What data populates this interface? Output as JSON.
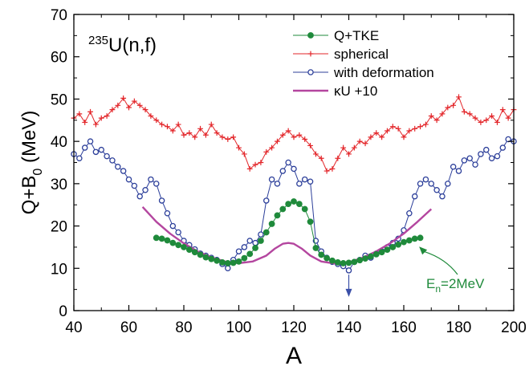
{
  "chart_data": {
    "type": "line",
    "title": "",
    "reaction": {
      "mass": "235",
      "rest": "U(n,f)"
    },
    "xlabel": "A",
    "ylabel": {
      "main": "Q+B",
      "sub": "0",
      "unit": " (MeV)"
    },
    "xlim": [
      40,
      200
    ],
    "ylim": [
      0,
      70
    ],
    "xticks": [
      "40",
      "60",
      "80",
      "100",
      "120",
      "140",
      "160",
      "180",
      "200"
    ],
    "yticks": [
      "0",
      "10",
      "20",
      "30",
      "40",
      "50",
      "60",
      "70"
    ],
    "grid": false,
    "legend_placement": "top-right",
    "annotation": {
      "text_main": "E",
      "text_sub": "n",
      "text_rest": "=2MeV",
      "color": "#1f8a3b",
      "point": [
        165,
        15.5
      ]
    },
    "marker_arrow": {
      "x": 140,
      "y_from": 8.5,
      "y_to": 4.0,
      "color": "#3a4fa8"
    },
    "series": [
      {
        "name": "Q+TKE",
        "color": "#1f8a3b",
        "marker": "filled-circle",
        "x": [
          70,
          72,
          74,
          76,
          78,
          80,
          82,
          84,
          86,
          88,
          90,
          92,
          94,
          96,
          98,
          100,
          102,
          104,
          106,
          108,
          110,
          112,
          114,
          116,
          118,
          120,
          122,
          124,
          126,
          128,
          130,
          132,
          134,
          136,
          138,
          140,
          142,
          144,
          146,
          148,
          150,
          152,
          154,
          156,
          158,
          160,
          162,
          164,
          166
        ],
        "y": [
          17.2,
          17.0,
          16.6,
          16.0,
          15.5,
          15.0,
          14.4,
          13.8,
          13.2,
          12.6,
          12.2,
          11.8,
          11.4,
          11.2,
          11.3,
          11.6,
          12.4,
          13.4,
          14.8,
          16.5,
          18.5,
          20.5,
          22.5,
          24.0,
          25.2,
          25.8,
          25.2,
          24.0,
          21.0,
          14.8,
          13.2,
          12.4,
          11.8,
          11.4,
          11.2,
          11.3,
          11.5,
          11.9,
          12.3,
          12.8,
          13.3,
          13.8,
          14.4,
          15.0,
          15.6,
          16.2,
          16.6,
          17.0,
          17.2
        ]
      },
      {
        "name": "spherical",
        "color": "#e3262a",
        "marker": "plus",
        "x": [
          40,
          42,
          44,
          46,
          48,
          50,
          52,
          54,
          56,
          58,
          60,
          62,
          64,
          66,
          68,
          70,
          72,
          74,
          76,
          78,
          80,
          82,
          84,
          86,
          88,
          90,
          92,
          94,
          96,
          98,
          100,
          102,
          104,
          106,
          108,
          110,
          112,
          114,
          116,
          118,
          120,
          122,
          124,
          126,
          128,
          130,
          132,
          134,
          136,
          138,
          140,
          142,
          144,
          146,
          148,
          150,
          152,
          154,
          156,
          158,
          160,
          162,
          164,
          166,
          168,
          170,
          172,
          174,
          176,
          178,
          180,
          182,
          184,
          186,
          188,
          190,
          192,
          194,
          196,
          198,
          200
        ],
        "y": [
          45.5,
          46.5,
          44.5,
          47.0,
          44.0,
          45.5,
          46.0,
          47.5,
          48.5,
          50.2,
          48.0,
          49.5,
          48.5,
          47.5,
          46.0,
          45.0,
          44.0,
          43.5,
          42.5,
          44.0,
          41.5,
          42.0,
          41.0,
          43.0,
          41.5,
          44.0,
          42.0,
          41.0,
          40.5,
          41.0,
          38.5,
          37.0,
          33.5,
          34.5,
          35.0,
          37.5,
          38.5,
          40.0,
          41.5,
          42.5,
          41.0,
          41.5,
          40.5,
          39.0,
          37.0,
          36.0,
          33.0,
          33.5,
          36.0,
          38.5,
          37.0,
          38.5,
          40.0,
          39.5,
          41.0,
          42.0,
          41.0,
          42.5,
          43.5,
          43.0,
          41.0,
          42.5,
          43.0,
          43.5,
          44.0,
          46.0,
          45.0,
          46.5,
          48.0,
          48.5,
          50.5,
          47.0,
          46.5,
          45.5,
          44.5,
          45.0,
          46.0,
          44.5,
          47.5,
          45.5,
          47.5
        ]
      },
      {
        "name": "with deformation",
        "color": "#2c3f9a",
        "marker": "open-circle",
        "x": [
          40,
          42,
          44,
          46,
          48,
          50,
          52,
          54,
          56,
          58,
          60,
          62,
          64,
          66,
          68,
          70,
          72,
          74,
          76,
          78,
          80,
          82,
          84,
          86,
          88,
          90,
          92,
          94,
          96,
          98,
          100,
          102,
          104,
          106,
          108,
          110,
          112,
          114,
          116,
          118,
          120,
          122,
          124,
          126,
          128,
          130,
          132,
          134,
          136,
          138,
          140,
          142,
          144,
          146,
          148,
          150,
          152,
          154,
          156,
          158,
          160,
          162,
          164,
          166,
          168,
          170,
          172,
          174,
          176,
          178,
          180,
          182,
          184,
          186,
          188,
          190,
          192,
          194,
          196,
          198,
          200
        ],
        "y": [
          37.0,
          36.0,
          38.5,
          40.0,
          37.5,
          38.0,
          36.5,
          35.5,
          34.0,
          33.0,
          31.0,
          29.5,
          27.0,
          28.5,
          31.0,
          30.0,
          26.0,
          23.0,
          20.0,
          18.5,
          16.5,
          15.5,
          14.5,
          13.5,
          13.0,
          12.5,
          12.0,
          11.0,
          10.0,
          12.0,
          14.0,
          15.0,
          16.5,
          16.0,
          18.0,
          26.0,
          31.0,
          30.0,
          33.0,
          35.0,
          33.5,
          30.0,
          31.0,
          30.5,
          16.5,
          14.0,
          12.5,
          11.5,
          11.0,
          10.5,
          9.5,
          11.5,
          12.0,
          13.0,
          12.5,
          13.5,
          14.0,
          15.0,
          16.0,
          17.0,
          19.0,
          23.0,
          27.0,
          30.0,
          31.0,
          30.0,
          28.5,
          27.0,
          30.0,
          34.0,
          33.0,
          35.5,
          36.0,
          34.5,
          37.0,
          38.0,
          36.0,
          36.5,
          38.5,
          40.5,
          40.0
        ]
      },
      {
        "name": "κU +10",
        "color": "#b4469f",
        "marker": "line",
        "x": [
          65,
          70,
          75,
          80,
          85,
          90,
          95,
          100,
          105,
          110,
          113,
          116,
          118,
          120,
          123,
          126,
          130,
          135,
          140,
          145,
          150,
          155,
          160,
          165,
          170
        ],
        "y": [
          24.5,
          21.0,
          18.2,
          15.9,
          14.0,
          12.6,
          11.6,
          11.2,
          11.6,
          13.0,
          14.6,
          15.8,
          16.0,
          15.8,
          14.6,
          13.0,
          11.6,
          11.1,
          11.4,
          12.5,
          14.0,
          15.9,
          18.2,
          21.0,
          24.0
        ]
      }
    ]
  }
}
